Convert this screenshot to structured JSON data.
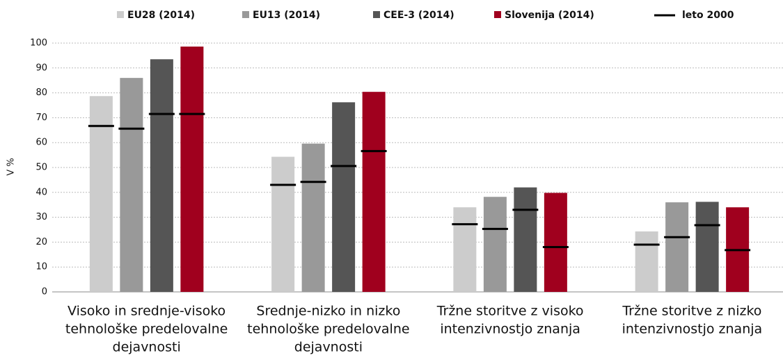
{
  "chart_data": {
    "type": "bar",
    "ylabel": "V %",
    "categories": [
      [
        "Visoko in srednje-visoko",
        "tehnološke predelovalne",
        "dejavnosti"
      ],
      [
        "Srednje-nizko in nizko",
        "tehnološke predelovalne",
        "dejavnosti"
      ],
      [
        "Tržne storitve z visoko",
        "intenzivnostjo znanja"
      ],
      [
        "Tržne storitve z nizko",
        "intenzivnostjo znanja"
      ]
    ],
    "series": [
      {
        "name": "EU28 (2014)",
        "color": "#cccccc",
        "values": [
          78.7,
          54.3,
          34,
          24.3
        ],
        "values_2000": [
          66.7,
          43,
          27.2,
          19
        ]
      },
      {
        "name": "EU13 (2014)",
        "color": "#999999",
        "values": [
          86,
          59.6,
          38.2,
          36
        ],
        "values_2000": [
          65.6,
          44.2,
          25.3,
          22
        ]
      },
      {
        "name": "CEE-3 (2014)",
        "color": "#555555",
        "values": [
          93.5,
          76.2,
          42,
          36.2
        ],
        "values_2000": [
          71.5,
          50.6,
          33,
          26.8
        ]
      },
      {
        "name": "Slovenija (2014)",
        "color": "#a0001e",
        "values": [
          98.6,
          80.4,
          39.8,
          34
        ],
        "values_2000": [
          71.5,
          56.6,
          18,
          16.8
        ]
      }
    ],
    "reference_name": "leto 2000",
    "reference_color": "#000000",
    "ylim": [
      0,
      100
    ],
    "yticks": [
      0,
      10,
      20,
      30,
      40,
      50,
      60,
      70,
      80,
      90,
      100
    ],
    "grid": true
  }
}
